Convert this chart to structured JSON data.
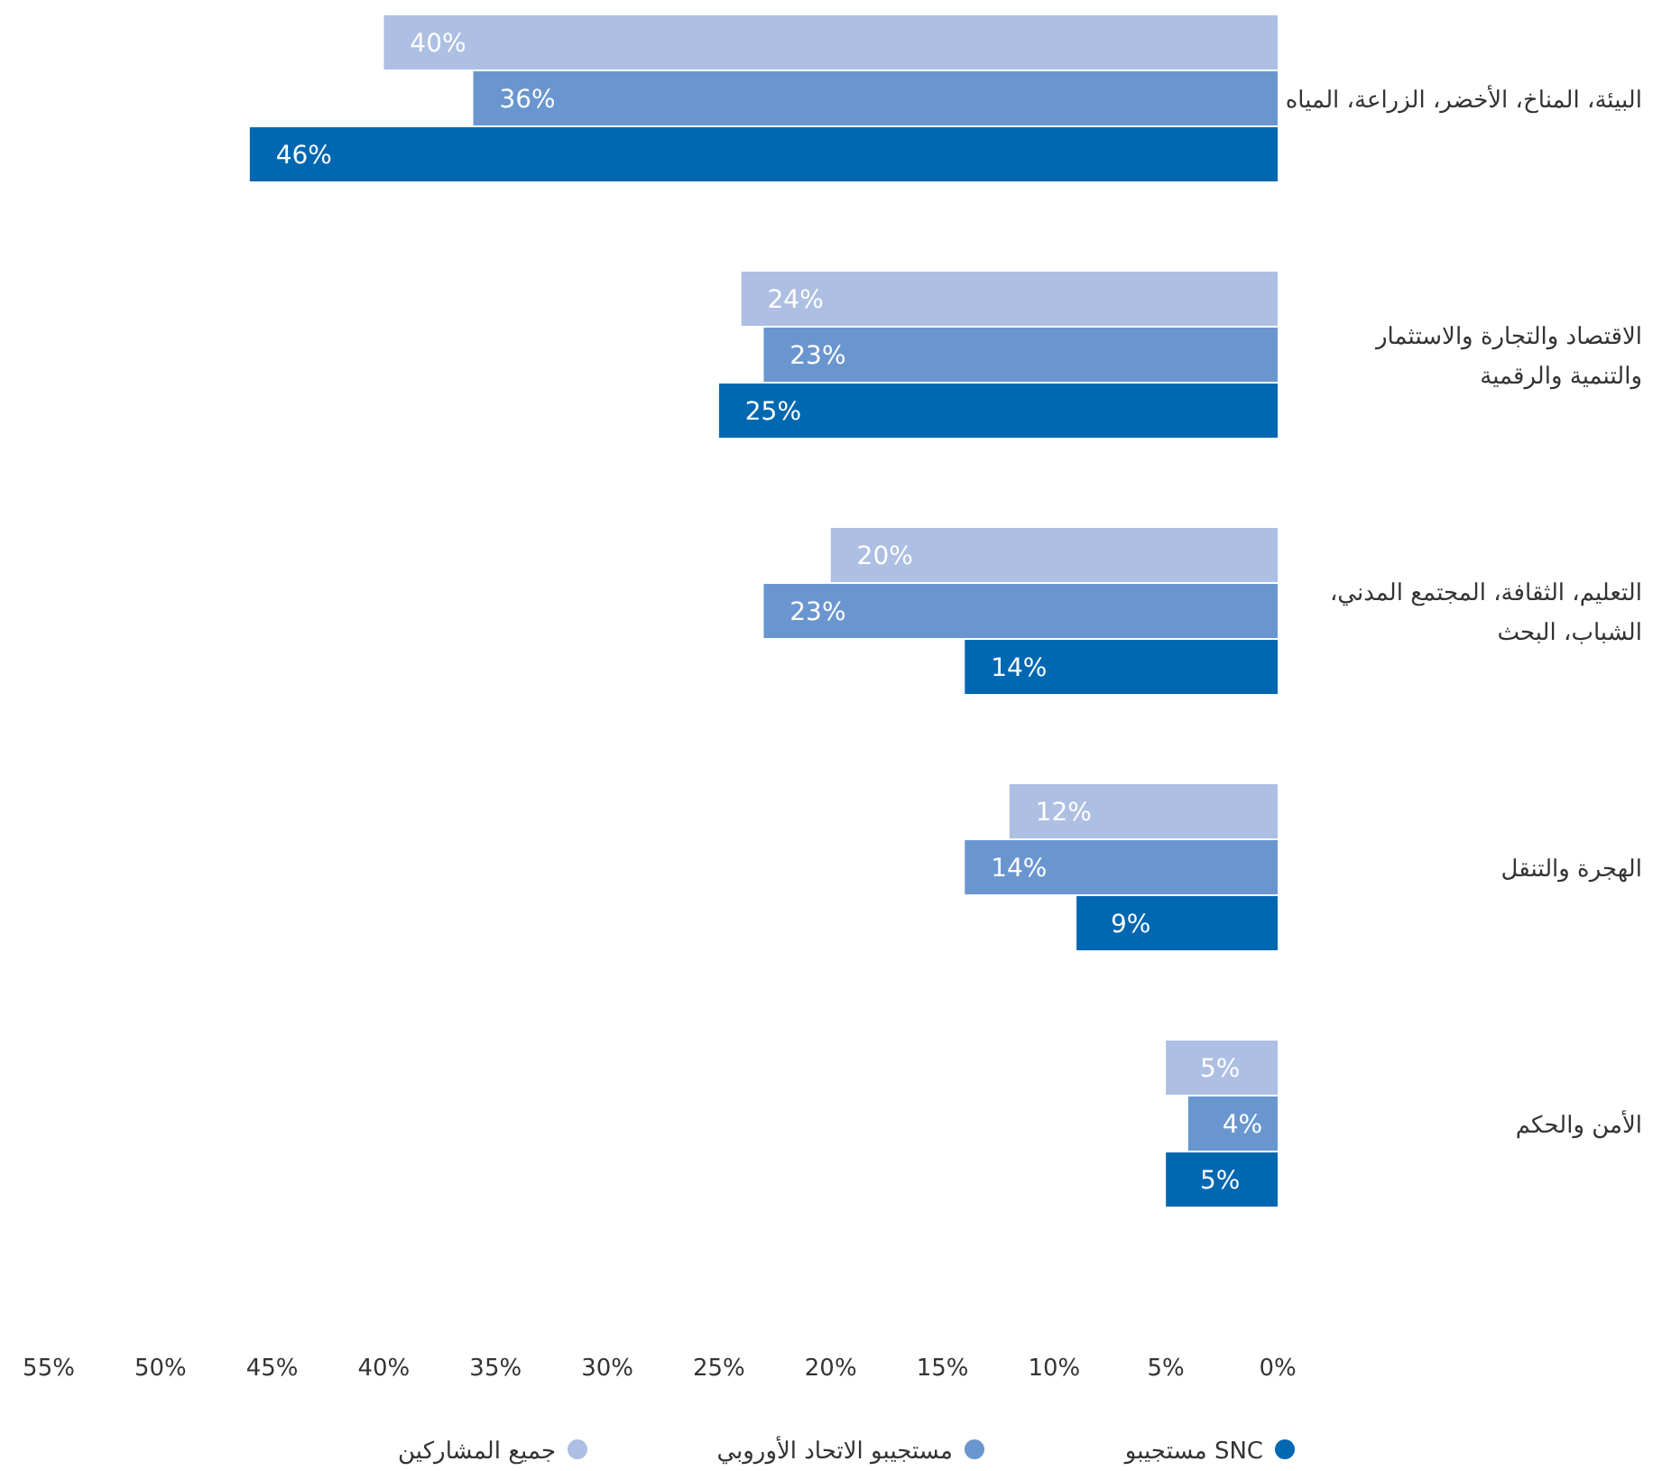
{
  "chart_data": {
    "type": "bar",
    "orientation": "horizontal",
    "categories": [
      "البيئة، المناخ، الأخضر، الزراعة، المياه",
      "الاقتصاد والتجارة والاستثمار\nوالتنمية والرقمية",
      "التعليم، الثقافة، المجتمع المدني،\nالشباب، البحث",
      "الهجرة والتنقل",
      "الأمن والحكم"
    ],
    "series": [
      {
        "name": "جميع المشاركين",
        "color": "#adbfe2",
        "values": [
          40,
          24,
          20,
          12,
          5
        ],
        "value_labels": [
          "40%",
          "24%",
          "20%",
          "12%",
          "5%"
        ]
      },
      {
        "name": "مستجيبو الاتحاد الأوروبي",
        "color": "#6a96cf",
        "values": [
          36,
          23,
          23,
          14,
          4
        ],
        "value_labels": [
          "36%",
          "23%",
          "23%",
          "14%",
          "4%"
        ]
      },
      {
        "name": "SNC مستجيبو",
        "color": "#0067b1",
        "values": [
          46,
          25,
          14,
          9,
          5
        ],
        "value_labels": [
          "46%",
          "25%",
          "14%",
          "9%",
          "5%"
        ]
      }
    ],
    "xlim": [
      55,
      0
    ],
    "xticks": [
      {
        "value": 55,
        "label": "55%"
      },
      {
        "value": 50,
        "label": "50%"
      },
      {
        "value": 45,
        "label": "45%"
      },
      {
        "value": 40,
        "label": "40%"
      },
      {
        "value": 35,
        "label": "35%"
      },
      {
        "value": 30,
        "label": "30%"
      },
      {
        "value": 25,
        "label": "25%"
      },
      {
        "value": 20,
        "label": "20%"
      },
      {
        "value": 15,
        "label": "15%"
      },
      {
        "value": 10,
        "label": "10%"
      },
      {
        "value": 5,
        "label": "5%"
      },
      {
        "value": 0,
        "label": "0%"
      }
    ],
    "grid": false,
    "legend": "bottom"
  }
}
